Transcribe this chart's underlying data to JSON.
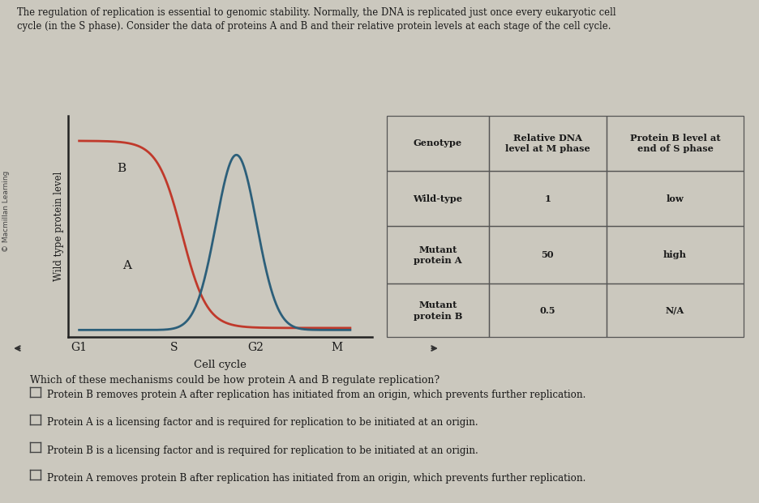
{
  "title_line1": "The regulation of replication is essential to genomic stability. Normally, the DNA is replicated just once every eukaryotic cell",
  "title_line2": "cycle (in the S phase). Consider the data of proteins A and B and their relative protein levels at each stage of the cell cycle.",
  "copyright_text": "© Macmillan Learning",
  "ylabel": "Wild type protein level",
  "xlabel": "Cell cycle",
  "x_ticks": [
    "G1",
    "S",
    "G2",
    "M"
  ],
  "x_tick_pos": [
    0.0,
    3.5,
    6.5,
    9.5
  ],
  "protein_B_color": "#c0392b",
  "protein_A_color": "#2c5f7a",
  "table_headers": [
    "Genotype",
    "Relative DNA\nlevel at M phase",
    "Protein B level at\nend of S phase"
  ],
  "table_rows": [
    [
      "Wild-type",
      "1",
      "low"
    ],
    [
      "Mutant\nprotein A",
      "50",
      "high"
    ],
    [
      "Mutant\nprotein B",
      "0.5",
      "N/A"
    ]
  ],
  "question": "Which of these mechanisms could be how protein A and B regulate replication?",
  "choices": [
    "Protein B removes protein A after replication has initiated from an origin, which prevents further replication.",
    "Protein A is a licensing factor and is required for replication to be initiated at an origin.",
    "Protein B is a licensing factor and is required for replication to be initiated at an origin.",
    "Protein A removes protein B after replication has initiated from an origin, which prevents further replication."
  ],
  "bg_color": "#cbc8be",
  "text_color": "#1a1a1a",
  "scrollbar_color": "#888888"
}
